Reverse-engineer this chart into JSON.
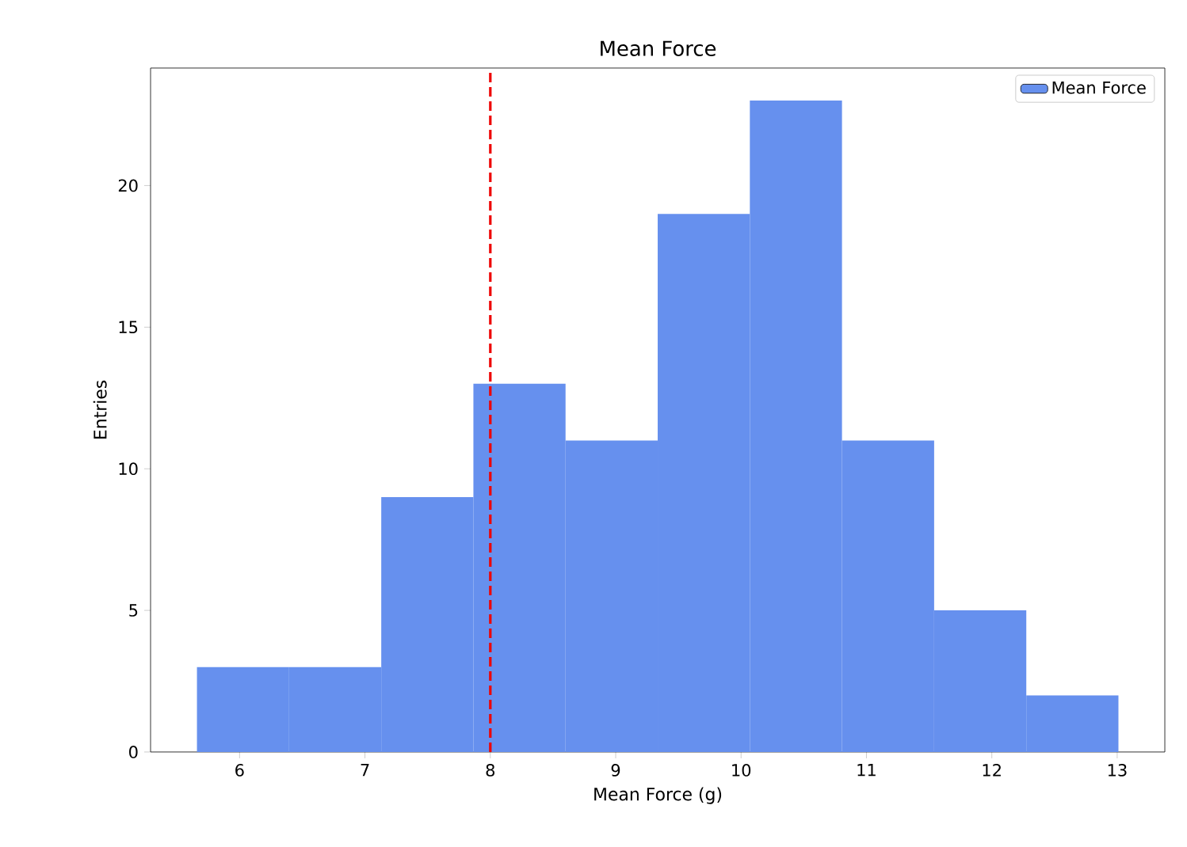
{
  "chart_data": {
    "type": "histogram",
    "title": "Mean Force",
    "xlabel": "Mean Force (g)",
    "ylabel": "Entries",
    "bins": [
      5.66,
      6.395,
      7.13,
      7.865,
      8.6,
      9.335,
      10.07,
      10.805,
      11.54,
      12.275,
      13.01
    ],
    "series": [
      {
        "name": "Mean Force",
        "color": "#6690ee",
        "values": [
          3,
          3,
          9,
          13,
          11,
          19,
          23,
          11,
          5,
          2
        ]
      }
    ],
    "xlim": [
      5.29,
      13.38
    ],
    "ylim": [
      0,
      24.15
    ],
    "xticks": [
      6,
      7,
      8,
      9,
      10,
      11,
      12,
      13
    ],
    "yticks": [
      0,
      5,
      10,
      15,
      20
    ],
    "ref_lines": [
      {
        "axis": "x",
        "value": 8,
        "color": "#ee0000",
        "line_style": "dashed"
      }
    ],
    "grid": false,
    "legend": "top right"
  }
}
